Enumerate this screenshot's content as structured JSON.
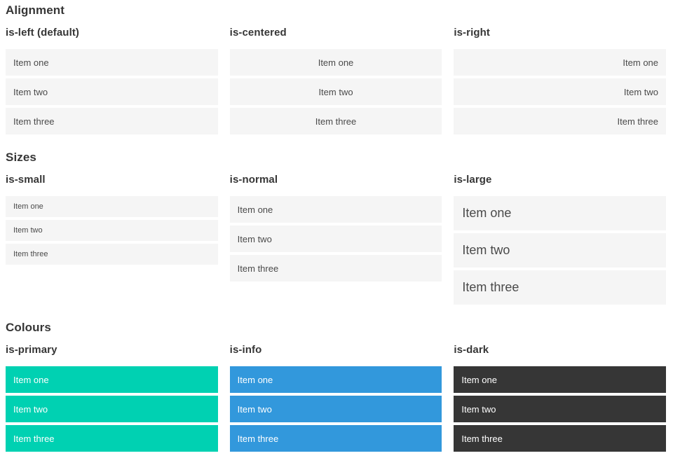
{
  "colors": {
    "primary": "#00d1b2",
    "info": "#3298dc",
    "dark": "#363636",
    "item_bg": "#f5f5f5",
    "item_text": "#4a4a4a",
    "heading": "#363636",
    "white_text": "#ffffff"
  },
  "sections": [
    {
      "title": "Alignment",
      "columns": [
        {
          "label": "is-left (default)",
          "items": [
            "Item one",
            "Item two",
            "Item three"
          ]
        },
        {
          "label": "is-centered",
          "items": [
            "Item one",
            "Item two",
            "Item three"
          ]
        },
        {
          "label": "is-right",
          "items": [
            "Item one",
            "Item two",
            "Item three"
          ]
        }
      ]
    },
    {
      "title": "Sizes",
      "columns": [
        {
          "label": "is-small",
          "items": [
            "Item one",
            "Item two",
            "Item three"
          ]
        },
        {
          "label": "is-normal",
          "items": [
            "Item one",
            "Item two",
            "Item three"
          ]
        },
        {
          "label": "is-large",
          "items": [
            "Item one",
            "Item two",
            "Item three"
          ]
        }
      ]
    },
    {
      "title": "Colours",
      "columns": [
        {
          "label": "is-primary",
          "items": [
            "Item one",
            "Item two",
            "Item three"
          ]
        },
        {
          "label": "is-info",
          "items": [
            "Item one",
            "Item two",
            "Item three"
          ]
        },
        {
          "label": "is-dark",
          "items": [
            "Item one",
            "Item two",
            "Item three"
          ]
        }
      ]
    }
  ]
}
